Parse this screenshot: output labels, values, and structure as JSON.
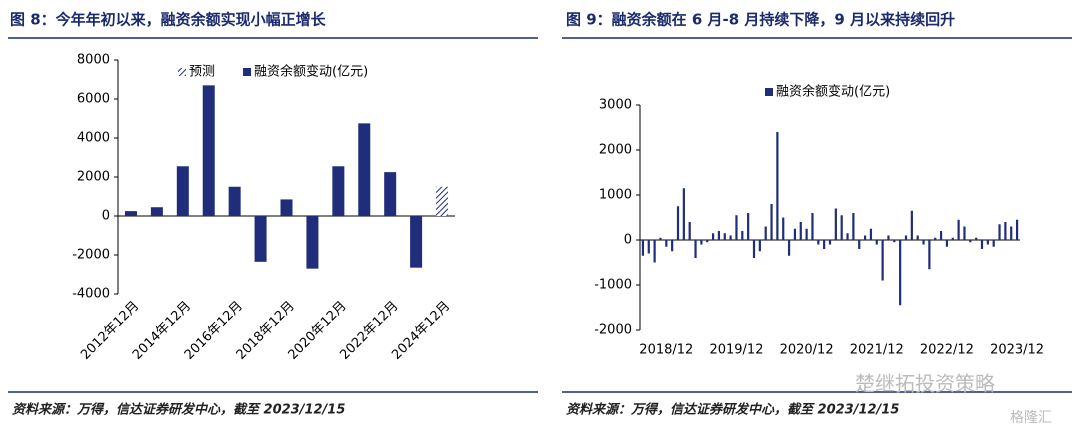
{
  "chart_data": [
    {
      "type": "bar",
      "title": "图 8：今年年初以来，融资余额实现小幅正增长",
      "source": "资料来源：万得，信达证券研发中心，截至 2023/12/15",
      "categories": [
        "2012年12月",
        null,
        "2014年12月",
        null,
        "2016年12月",
        null,
        "2018年12月",
        null,
        "2020年12月",
        null,
        "2022年12月",
        null,
        "2024年12月"
      ],
      "series": [
        {
          "name": "预测",
          "color": "#1f2d7a",
          "hatch": true,
          "values": [
            null,
            null,
            null,
            null,
            null,
            null,
            null,
            null,
            null,
            null,
            null,
            null,
            1500
          ]
        },
        {
          "name": "融资余额变动(亿元)",
          "color": "#1f2d7a",
          "values": [
            250,
            450,
            2550,
            6700,
            1500,
            -2350,
            850,
            -2700,
            2550,
            4750,
            2250,
            -2650,
            null
          ]
        }
      ],
      "ylim": [
        -4000,
        8000
      ],
      "yticks": [
        -4000,
        -2000,
        0,
        2000,
        4000,
        6000,
        8000
      ],
      "rotate_labels": true
    },
    {
      "type": "bar",
      "title": "图 9：融资余额在 6 月-8 月持续下降，9 月以来持续回升",
      "source": "资料来源：万得，信达证券研发中心，截至 2023/12/15",
      "categories": [
        null,
        null,
        null,
        null,
        "2018/12",
        null,
        null,
        null,
        null,
        null,
        null,
        null,
        null,
        null,
        null,
        null,
        "2019/12",
        null,
        null,
        null,
        null,
        null,
        null,
        null,
        null,
        null,
        null,
        null,
        "2020/12",
        null,
        null,
        null,
        null,
        null,
        null,
        null,
        null,
        null,
        null,
        null,
        "2021/12",
        null,
        null,
        null,
        null,
        null,
        null,
        null,
        null,
        null,
        null,
        null,
        "2022/12",
        null,
        null,
        null,
        null,
        null,
        null,
        null,
        null,
        null,
        null,
        null,
        "2023/12"
      ],
      "series": [
        {
          "name": "融资余额变动(亿元)",
          "color": "#1f2d7a",
          "values": [
            -350,
            -300,
            -500,
            50,
            -150,
            -250,
            750,
            1150,
            400,
            -400,
            -100,
            -50,
            150,
            200,
            150,
            100,
            550,
            200,
            600,
            -400,
            -250,
            300,
            800,
            2400,
            500,
            -350,
            250,
            400,
            250,
            600,
            -100,
            -200,
            -100,
            700,
            550,
            150,
            600,
            -200,
            100,
            250,
            -100,
            -900,
            100,
            -50,
            -1450,
            100,
            650,
            100,
            -100,
            -650,
            50,
            200,
            -150,
            50,
            450,
            300,
            -50,
            50,
            -200,
            -100,
            -150,
            350,
            400,
            300,
            450
          ]
        }
      ],
      "ylim": [
        -2000,
        3000
      ],
      "yticks": [
        -2000,
        -1000,
        0,
        1000,
        2000,
        3000
      ],
      "rotate_labels": false
    }
  ],
  "watermark": [
    "楚继拓投资策略",
    "格隆汇"
  ]
}
